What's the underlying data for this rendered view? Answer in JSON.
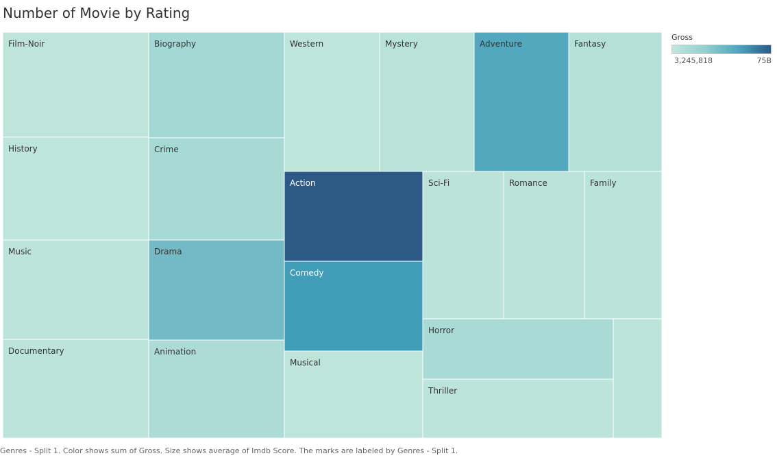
{
  "title": "Number of Movie by Rating",
  "legend": {
    "title": "Gross",
    "min_label": "3,245,818",
    "max_label": "75B",
    "color_low": "#c1e6dd",
    "color_high": "#2b5986"
  },
  "caption": "Genres - Split 1.  Color shows sum of Gross.  Size shows average of Imdb Score.  The marks are labeled by Genres - Split 1.",
  "chart_data": {
    "type": "treemap",
    "title": "Number of Movie by Rating",
    "size_measure": "average of Imdb Score",
    "color_measure": "sum of Gross",
    "label_field": "Genres - Split 1",
    "color_scale": {
      "min": 3245818,
      "max": 75000000000,
      "min_label": "3,245,818",
      "max_label": "75B"
    },
    "items": [
      {
        "label": "Film-Noir",
        "color": "#bfe5da"
      },
      {
        "label": "History",
        "color": "#bee5db"
      },
      {
        "label": "Music",
        "color": "#bde4da"
      },
      {
        "label": "Documentary",
        "color": "#bde4da"
      },
      {
        "label": "Biography",
        "color": "#a4d8d4"
      },
      {
        "label": "Crime",
        "color": "#a8dad5"
      },
      {
        "label": "Drama",
        "color": "#74bac6"
      },
      {
        "label": "Animation",
        "color": "#addcd6"
      },
      {
        "label": "Western",
        "color": "#bee5da"
      },
      {
        "label": "Mystery",
        "color": "#b9e2d9"
      },
      {
        "label": "Adventure",
        "color": "#53a8bd"
      },
      {
        "label": "Fantasy",
        "color": "#b4e0d8"
      },
      {
        "label": "Action",
        "color": "#2d5986"
      },
      {
        "label": "Comedy",
        "color": "#429db8"
      },
      {
        "label": "Musical",
        "color": "#bee5da"
      },
      {
        "label": "Sci-Fi",
        "color": "#bbe3d9"
      },
      {
        "label": "Romance",
        "color": "#bbe3d9"
      },
      {
        "label": "Family",
        "color": "#bae3d9"
      },
      {
        "label": "Horror",
        "color": "#a9dad5"
      },
      {
        "label": "Thriller",
        "color": "#bde4da"
      },
      {
        "label": "",
        "color": "#bde4da"
      }
    ]
  }
}
